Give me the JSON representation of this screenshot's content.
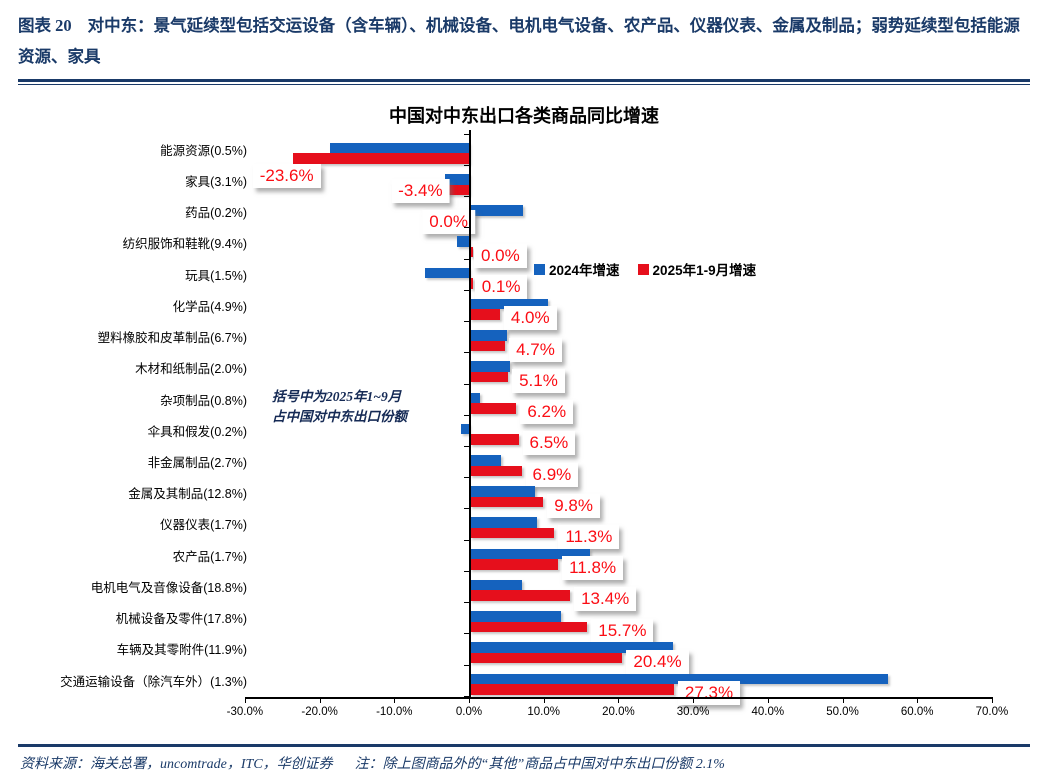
{
  "header": {
    "figure_label": "图表 20",
    "title": "对中东：景气延续型包括交运设备（含车辆）、机械设备、电机电气设备、农产品、仪器仪表、金属及制品；弱势延续型包括能源资源、家具"
  },
  "chart_data": {
    "type": "bar",
    "orientation": "horizontal",
    "title": "中国对中东出口各类商品同比增速",
    "categories": [
      "能源资源(0.5%)",
      "家具(3.1%)",
      "药品(0.2%)",
      "纺织服饰和鞋靴(9.4%)",
      "玩具(1.5%)",
      "化学品(4.9%)",
      "塑料橡胶和皮革制品(6.7%)",
      "木材和纸制品(2.0%)",
      "杂项制品(0.8%)",
      "伞具和假发(0.2%)",
      "非金属制品(2.7%)",
      "金属及其制品(12.8%)",
      "仪器仪表(1.7%)",
      "农产品(1.7%)",
      "电机电气及音像设备(18.8%)",
      "机械设备及零件(17.8%)",
      "车辆及其零附件(11.9%)",
      "交通运输设备（除汽车外）(1.3%)"
    ],
    "series": [
      {
        "name": "2024年增速",
        "color": "#1562be",
        "values": [
          -18.6,
          -3.2,
          7.1,
          -1.6,
          -5.9,
          10.4,
          5.0,
          5.3,
          1.4,
          -1.1,
          4.1,
          8.7,
          9.0,
          16.0,
          7.0,
          12.2,
          27.2,
          55.9
        ]
      },
      {
        "name": "2025年1-9月增速",
        "color": "#e60f1c",
        "values": [
          -23.6,
          -3.4,
          0.0,
          0.0,
          0.1,
          4.0,
          4.7,
          5.1,
          6.2,
          6.5,
          6.9,
          9.8,
          11.3,
          11.8,
          13.4,
          15.7,
          20.4,
          27.3
        ],
        "labels": [
          "-23.6%",
          "-3.4%",
          "0.0%",
          "0.0%",
          "0.1%",
          "4.0%",
          "4.7%",
          "5.1%",
          "6.2%",
          "6.5%",
          "6.9%",
          "9.8%",
          "11.3%",
          "11.8%",
          "13.4%",
          "15.7%",
          "20.4%",
          "27.3%"
        ]
      }
    ],
    "xlim": [
      -30,
      70
    ],
    "x_tick_labels": [
      "-30.0%",
      "-20.0%",
      "-10.0%",
      "0.0%",
      "10.0%",
      "20.0%",
      "30.0%",
      "40.0%",
      "50.0%",
      "60.0%",
      "70.0%"
    ],
    "x_tick_values": [
      -30,
      -20,
      -10,
      0,
      10,
      20,
      30,
      40,
      50,
      60,
      70
    ],
    "grid": "off",
    "legend_position": "top-right-inside",
    "annotation": {
      "line1": "括号中为2025年1~9月",
      "line2": "占中国对中东出口份额"
    },
    "label_color": "#fb0d14"
  },
  "footer": {
    "source": "资料来源：海关总署，uncomtrade，ITC，华创证券",
    "note": "注：除上图商品外的“其他”商品占中国对中东出口份额 2.1%"
  }
}
